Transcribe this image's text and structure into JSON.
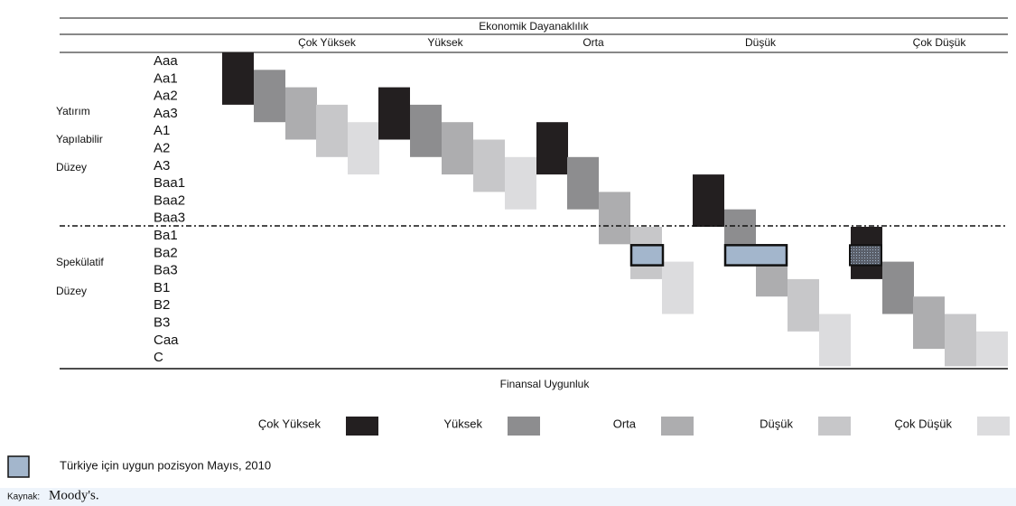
{
  "header": {
    "title": "Ekonomik Dayanaklılık",
    "columns": [
      "Çok Yüksek",
      "Yüksek",
      "Orta",
      "Düşük",
      "Çok Düşük"
    ]
  },
  "ratings": [
    "Aaa",
    "Aa1",
    "Aa2",
    "Aa3",
    "A1",
    "A2",
    "A3",
    "Baa1",
    "Baa2",
    "Baa3",
    "Ba1",
    "Ba2",
    "Ba3",
    "B1",
    "B2",
    "B3",
    "Caa",
    "C"
  ],
  "groups": [
    {
      "lines": [
        "Yatırım",
        "Yapılabilir",
        "Düzey"
      ]
    },
    {
      "lines": [
        "Spekülatif",
        "Düzey"
      ]
    }
  ],
  "footer": "Finansal Uygunluk",
  "legend": {
    "items": [
      {
        "label": "Çok Yüksek",
        "color": "#231f20"
      },
      {
        "label": "Yüksek",
        "color": "#8d8d8f"
      },
      {
        "label": "Orta",
        "color": "#adadaf"
      },
      {
        "label": "Düşük",
        "color": "#c7c7c9"
      },
      {
        "label": "Çok Düşük",
        "color": "#dcdcde"
      }
    ],
    "note": {
      "label": "Türkiye için uygun pozisyon Mayıs, 2010",
      "color": "#a3b6cc"
    }
  },
  "source": {
    "label": "Kaynak:",
    "name": "Moody's."
  }
}
